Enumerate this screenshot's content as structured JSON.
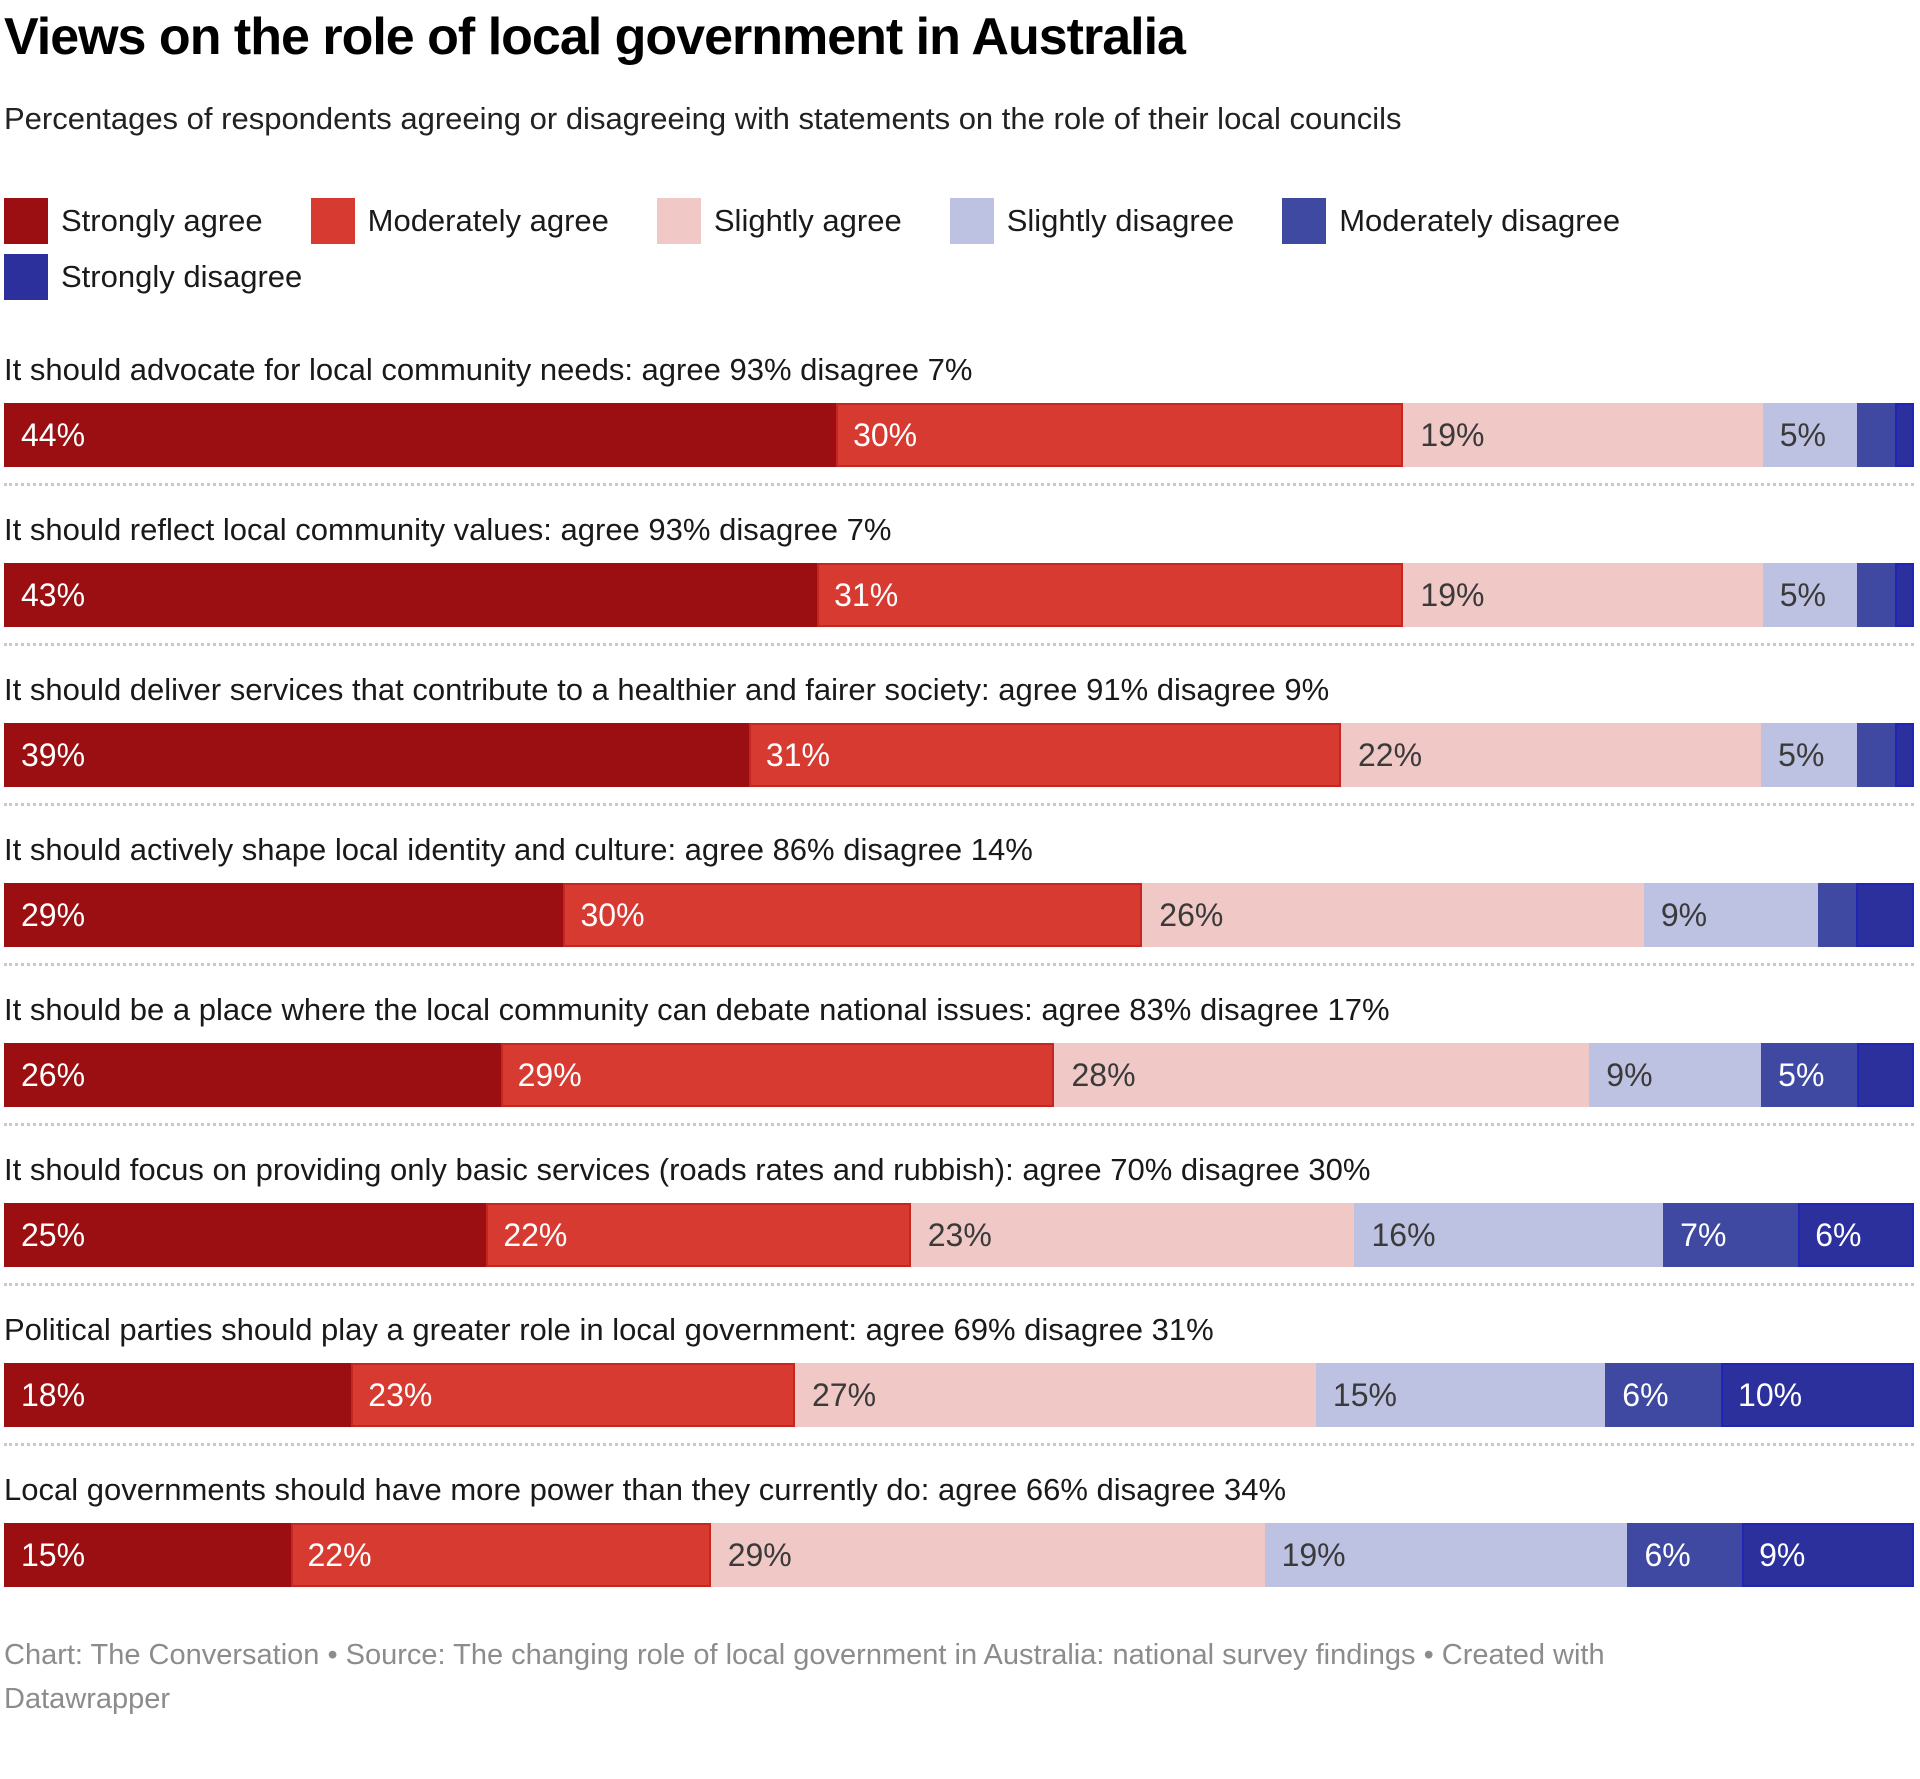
{
  "header": {
    "title": "Views on the role of local government in Australia",
    "subtitle": "Percentages of respondents agreeing or disagreeing with statements on the role of their local councils"
  },
  "legend": [
    {
      "label": "Strongly agree",
      "color": "#9B0E11"
    },
    {
      "label": "Moderately agree",
      "color": "#D73A31"
    },
    {
      "label": "Slightly agree",
      "color": "#F0C8C6"
    },
    {
      "label": "Slightly disagree",
      "color": "#BDC1E2"
    },
    {
      "label": "Moderately disagree",
      "color": "#3F49A1"
    },
    {
      "label": "Strongly disagree",
      "color": "#2B309C"
    }
  ],
  "footer": {
    "text": "Chart: The Conversation • Source: The changing role of local government in Australia: national survey findings • Created with Datawrapper"
  },
  "chart_data": {
    "type": "bar",
    "stacked": true,
    "orientation": "horizontal",
    "unit": "%",
    "xlim": [
      0,
      100
    ],
    "grid": false,
    "legend_position": "top",
    "series": [
      "Strongly agree",
      "Moderately agree",
      "Slightly agree",
      "Slightly disagree",
      "Moderately disagree",
      "Strongly disagree"
    ],
    "rows": [
      {
        "statement": "It should advocate for local community needs: agree 93% disagree 7%",
        "values": [
          44,
          30,
          19,
          5,
          2,
          1
        ],
        "labels": [
          "44%",
          "30%",
          "19%",
          "5%",
          "",
          ""
        ]
      },
      {
        "statement": "It should reflect local community values: agree 93% disagree 7%",
        "values": [
          43,
          31,
          19,
          5,
          2,
          1
        ],
        "labels": [
          "43%",
          "31%",
          "19%",
          "5%",
          "",
          ""
        ]
      },
      {
        "statement": "It should deliver services that contribute to a healthier and fairer society: agree 91% disagree 9%",
        "values": [
          39,
          31,
          22,
          5,
          2,
          1
        ],
        "labels": [
          "39%",
          "31%",
          "22%",
          "5%",
          "",
          ""
        ]
      },
      {
        "statement": "It should actively shape local identity and culture: agree 86% disagree 14%",
        "values": [
          29,
          30,
          26,
          9,
          2,
          3
        ],
        "labels": [
          "29%",
          "30%",
          "26%",
          "9%",
          "",
          ""
        ]
      },
      {
        "statement": "It should be a place where the local community can debate national issues: agree 83% disagree 17%",
        "values": [
          26,
          29,
          28,
          9,
          5,
          3
        ],
        "labels": [
          "26%",
          "29%",
          "28%",
          "9%",
          "5%",
          ""
        ]
      },
      {
        "statement": "It should focus on providing only basic services (roads rates and rubbish): agree 70% disagree 30%",
        "values": [
          25,
          22,
          23,
          16,
          7,
          6
        ],
        "labels": [
          "25%",
          "22%",
          "23%",
          "16%",
          "7%",
          "6%"
        ]
      },
      {
        "statement": "Political parties should play a greater role in local government: agree 69% disagree 31%",
        "values": [
          18,
          23,
          27,
          15,
          6,
          10
        ],
        "labels": [
          "18%",
          "23%",
          "27%",
          "15%",
          "6%",
          "10%"
        ]
      },
      {
        "statement": "Local governments should have more power than they currently do: agree 66% disagree 34%",
        "values": [
          15,
          22,
          29,
          19,
          6,
          9
        ],
        "labels": [
          "15%",
          "22%",
          "29%",
          "19%",
          "6%",
          "9%"
        ]
      }
    ]
  }
}
